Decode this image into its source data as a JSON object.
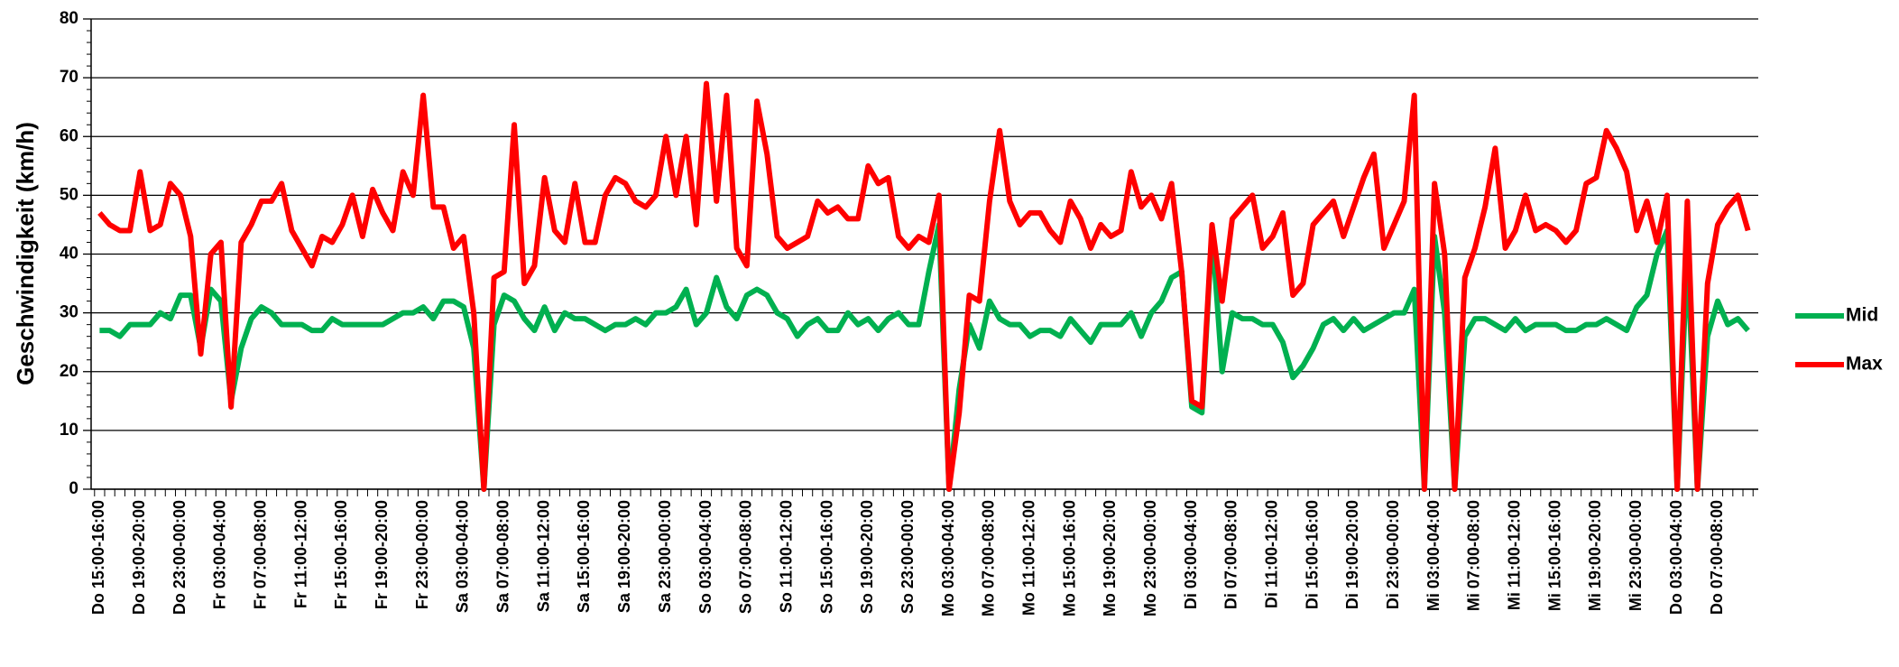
{
  "chart_data": {
    "type": "line",
    "y_label": "Geschwindigkeit (km/h)",
    "categories": [
      "Do 15:00-16:00",
      null,
      null,
      null,
      "Do 19:00-20:00",
      null,
      null,
      null,
      "Do 23:00-00:00",
      null,
      null,
      null,
      "Fr 03:00-04:00",
      null,
      null,
      null,
      "Fr 07:00-08:00",
      null,
      null,
      null,
      "Fr 11:00-12:00",
      null,
      null,
      null,
      "Fr 15:00-16:00",
      null,
      null,
      null,
      "Fr 19:00-20:00",
      null,
      null,
      null,
      "Fr 23:00-00:00",
      null,
      null,
      null,
      "Sa 03:00-04:00",
      null,
      null,
      null,
      "Sa 07:00-08:00",
      null,
      null,
      null,
      "Sa 11:00-12:00",
      null,
      null,
      null,
      "Sa 15:00-16:00",
      null,
      null,
      null,
      "Sa 19:00-20:00",
      null,
      null,
      null,
      "Sa 23:00-00:00",
      null,
      null,
      null,
      "So 03:00-04:00",
      null,
      null,
      null,
      "So 07:00-08:00",
      null,
      null,
      null,
      "So 11:00-12:00",
      null,
      null,
      null,
      "So 15:00-16:00",
      null,
      null,
      null,
      "So 19:00-20:00",
      null,
      null,
      null,
      "So 23:00-00:00",
      null,
      null,
      null,
      "Mo 03:00-04:00",
      null,
      null,
      null,
      "Mo 07:00-08:00",
      null,
      null,
      null,
      "Mo 11:00-12:00",
      null,
      null,
      null,
      "Mo 15:00-16:00",
      null,
      null,
      null,
      "Mo 19:00-20:00",
      null,
      null,
      null,
      "Mo 23:00-00:00",
      null,
      null,
      null,
      "Di 03:00-04:00",
      null,
      null,
      null,
      "Di 07:00-08:00",
      null,
      null,
      null,
      "Di 11:00-12:00",
      null,
      null,
      null,
      "Di 15:00-16:00",
      null,
      null,
      null,
      "Di 19:00-20:00",
      null,
      null,
      null,
      "Di 23:00-00:00",
      null,
      null,
      null,
      "Mi 03:00-04:00",
      null,
      null,
      null,
      "Mi 07:00-08:00",
      null,
      null,
      null,
      "Mi 11:00-12:00",
      null,
      null,
      null,
      "Mi 15:00-16:00",
      null,
      null,
      null,
      "Mi 19:00-20:00",
      null,
      null,
      null,
      "Mi 23:00-00:00",
      null,
      null,
      null,
      "Do 03:00-04:00",
      null,
      null,
      null,
      "Do 07:00-08:00",
      null,
      null,
      null
    ],
    "series": [
      {
        "name": "Mid",
        "color": "#00b050",
        "values": [
          27,
          27,
          26,
          28,
          28,
          28,
          30,
          29,
          33,
          33,
          24,
          34,
          32,
          15,
          24,
          29,
          31,
          30,
          28,
          28,
          28,
          27,
          27,
          29,
          28,
          28,
          28,
          28,
          28,
          29,
          30,
          30,
          31,
          29,
          32,
          32,
          31,
          24,
          0,
          28,
          33,
          32,
          29,
          27,
          31,
          27,
          30,
          29,
          29,
          28,
          27,
          28,
          28,
          29,
          28,
          30,
          30,
          31,
          34,
          28,
          30,
          36,
          31,
          29,
          33,
          34,
          33,
          30,
          29,
          26,
          28,
          29,
          27,
          27,
          30,
          28,
          29,
          27,
          29,
          30,
          28,
          28,
          37,
          45,
          0,
          17,
          28,
          24,
          32,
          29,
          28,
          28,
          26,
          27,
          27,
          26,
          29,
          27,
          25,
          28,
          28,
          28,
          30,
          26,
          30,
          32,
          36,
          37,
          14,
          13,
          44,
          20,
          30,
          29,
          29,
          28,
          28,
          25,
          19,
          21,
          24,
          28,
          29,
          27,
          29,
          27,
          28,
          29,
          30,
          30,
          34,
          0,
          43,
          30,
          0,
          26,
          29,
          29,
          28,
          27,
          29,
          27,
          28,
          28,
          28,
          27,
          27,
          28,
          28,
          29,
          28,
          27,
          31,
          33,
          40,
          44,
          0,
          40,
          0,
          26,
          32,
          28,
          29,
          27
        ]
      },
      {
        "name": "Max",
        "color": "#ff0000",
        "values": [
          47,
          45,
          44,
          44,
          54,
          44,
          45,
          52,
          50,
          43,
          23,
          40,
          42,
          14,
          42,
          45,
          49,
          49,
          52,
          44,
          41,
          38,
          43,
          42,
          45,
          50,
          43,
          51,
          47,
          44,
          54,
          50,
          67,
          48,
          48,
          41,
          43,
          30,
          0,
          36,
          37,
          62,
          35,
          38,
          53,
          44,
          42,
          52,
          42,
          42,
          50,
          53,
          52,
          49,
          48,
          50,
          60,
          50,
          60,
          45,
          69,
          49,
          67,
          41,
          38,
          66,
          57,
          43,
          41,
          42,
          43,
          49,
          47,
          48,
          46,
          46,
          55,
          52,
          53,
          43,
          41,
          43,
          42,
          50,
          0,
          13,
          33,
          32,
          49,
          61,
          49,
          45,
          47,
          47,
          44,
          42,
          49,
          46,
          41,
          45,
          43,
          44,
          54,
          48,
          50,
          46,
          52,
          37,
          15,
          14,
          45,
          32,
          46,
          48,
          50,
          41,
          43,
          47,
          33,
          35,
          45,
          47,
          49,
          43,
          48,
          53,
          57,
          41,
          45,
          49,
          67,
          0,
          52,
          40,
          0,
          36,
          41,
          48,
          58,
          41,
          44,
          50,
          44,
          45,
          44,
          42,
          44,
          52,
          53,
          61,
          58,
          54,
          44,
          49,
          42,
          50,
          0,
          49,
          0,
          35,
          45,
          48,
          50,
          44
        ]
      }
    ],
    "ylim": [
      0,
      80
    ],
    "yticks": [
      0,
      10,
      20,
      30,
      40,
      50,
      60,
      70,
      80
    ],
    "grid": true,
    "legend": "right"
  }
}
